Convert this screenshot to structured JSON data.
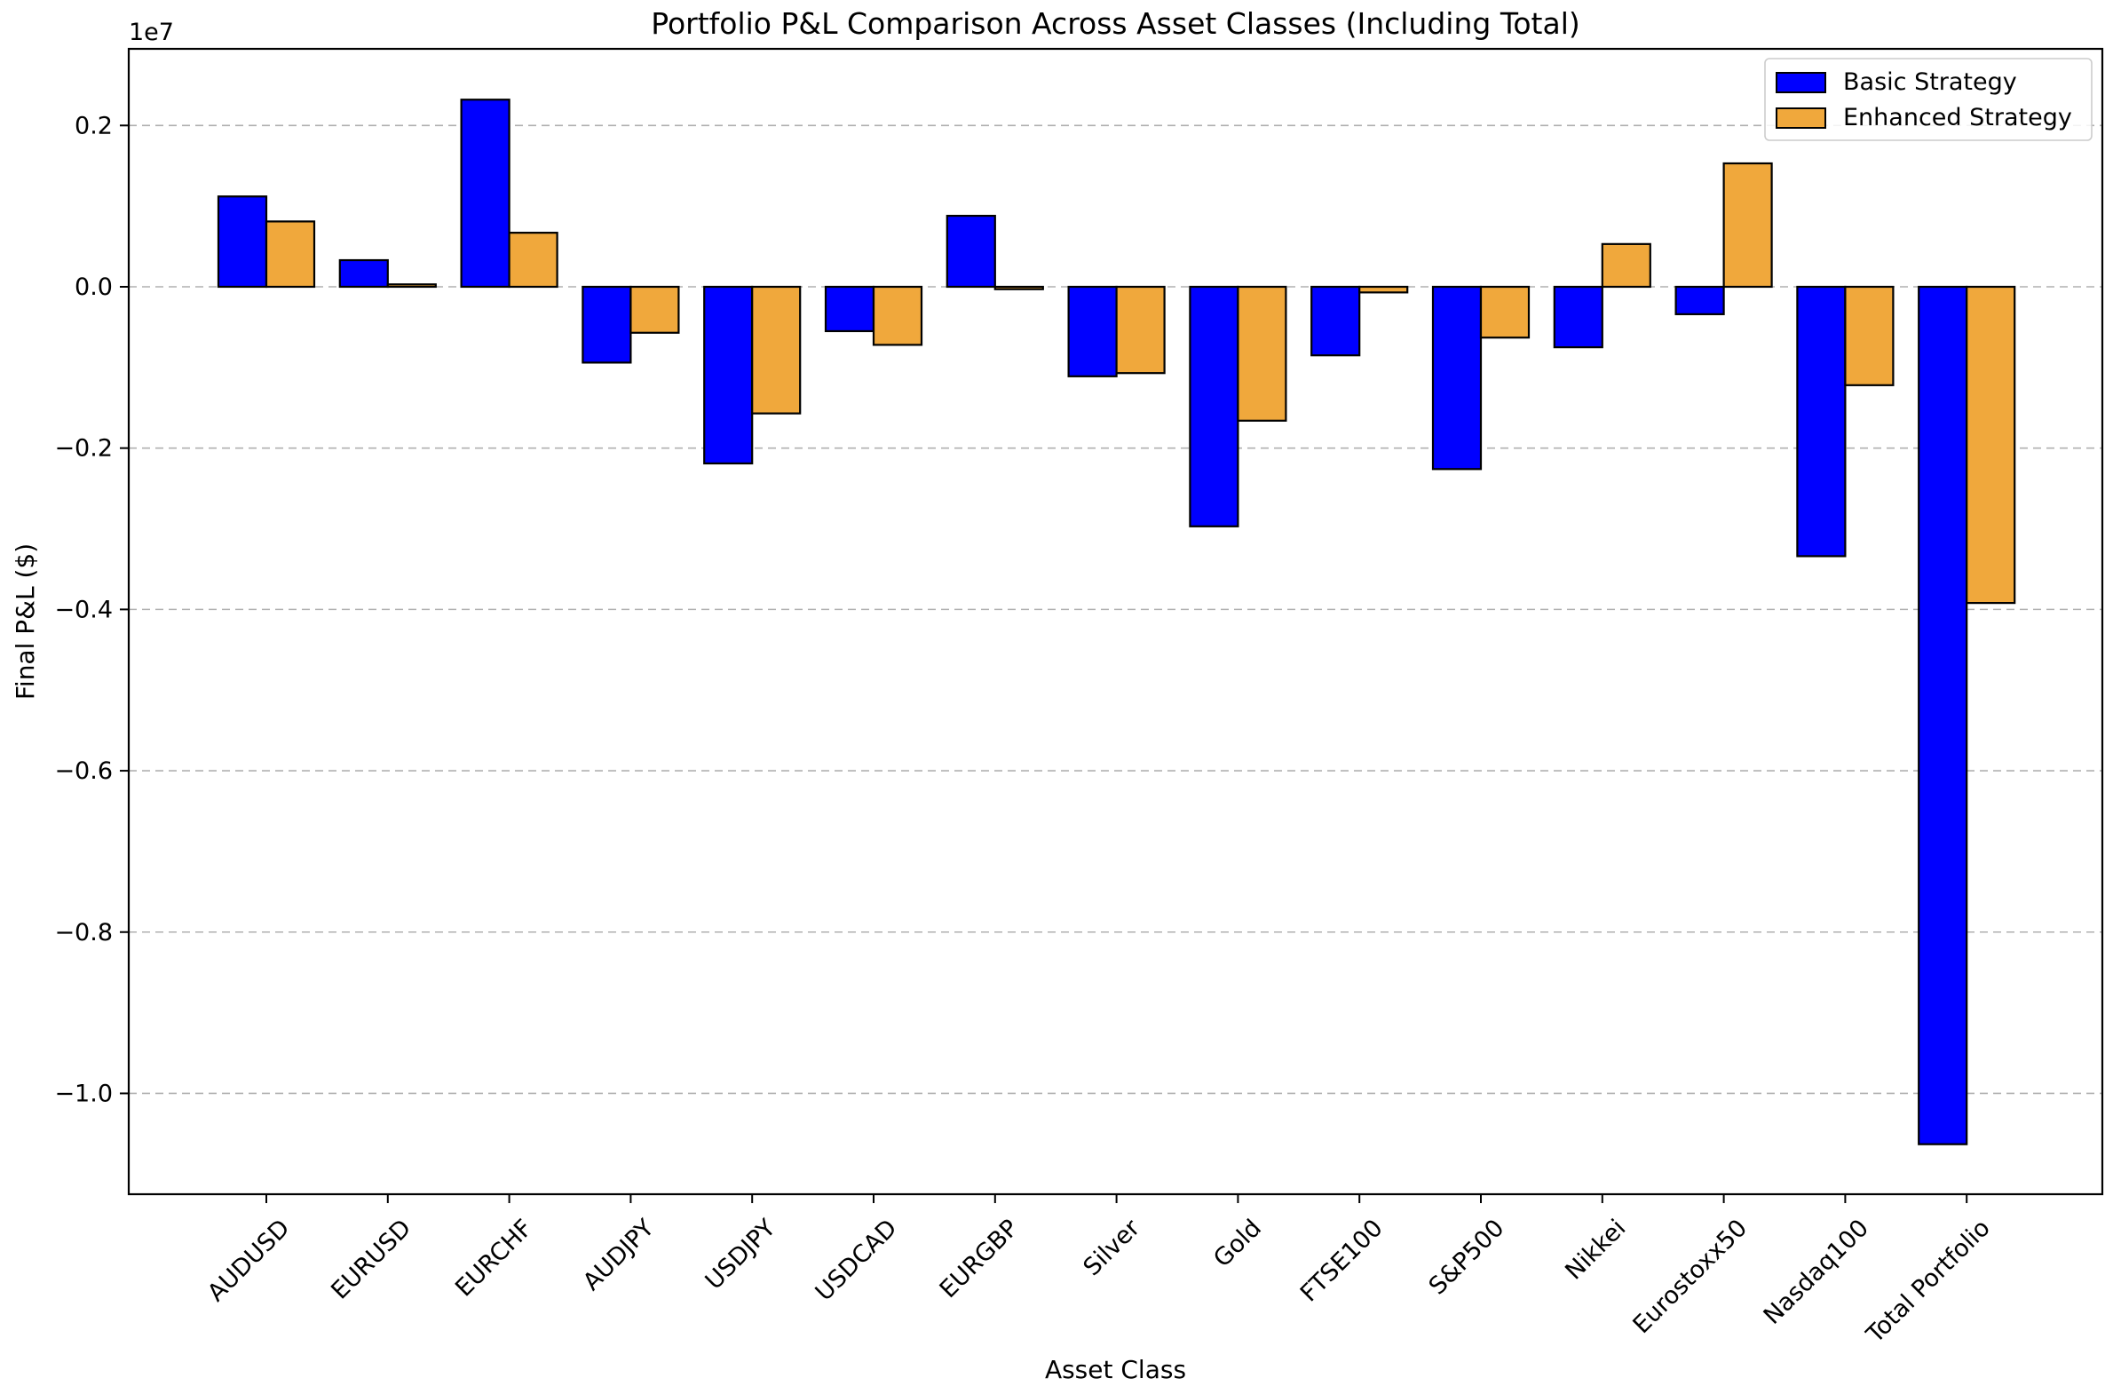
{
  "chart_data": {
    "type": "bar",
    "title": "Portfolio P&L Comparison Across Asset Classes (Including Total)",
    "xlabel": "Asset Class",
    "ylabel": "Final P&L ($)",
    "y_offset_label": "1e7",
    "y_scale": 10000000,
    "ylim": [
      -11250000,
      2950000
    ],
    "yticks": [
      0.2,
      0.0,
      -0.2,
      -0.4,
      -0.6,
      -0.8,
      -1.0
    ],
    "ytick_labels": [
      "0.2",
      "0.0",
      "−0.2",
      "−0.4",
      "−0.6",
      "−0.8",
      "−1.0"
    ],
    "grid": "y-dashed",
    "legend_position": "top-right",
    "categories": [
      "AUDUSD",
      "EURUSD",
      "EURCHF",
      "AUDJPY",
      "USDJPY",
      "USDCAD",
      "EURGBP",
      "Silver",
      "Gold",
      "FTSE100",
      "S&P500",
      "Nikkei",
      "Eurostoxx50",
      "Nasdaq100",
      "Total Portfolio"
    ],
    "series": [
      {
        "name": "Basic Strategy",
        "color": "#0000ff",
        "values": [
          1120000,
          330000,
          2320000,
          -940000,
          -2190000,
          -550000,
          880000,
          -1110000,
          -2970000,
          -850000,
          -2260000,
          -750000,
          -340000,
          -3340000,
          -10630000
        ]
      },
      {
        "name": "Enhanced Strategy",
        "color": "#f0a83c",
        "values": [
          810000,
          30000,
          670000,
          -570000,
          -1570000,
          -720000,
          -30000,
          -1070000,
          -1660000,
          -70000,
          -630000,
          530000,
          1530000,
          -1220000,
          -3920000
        ]
      }
    ]
  }
}
